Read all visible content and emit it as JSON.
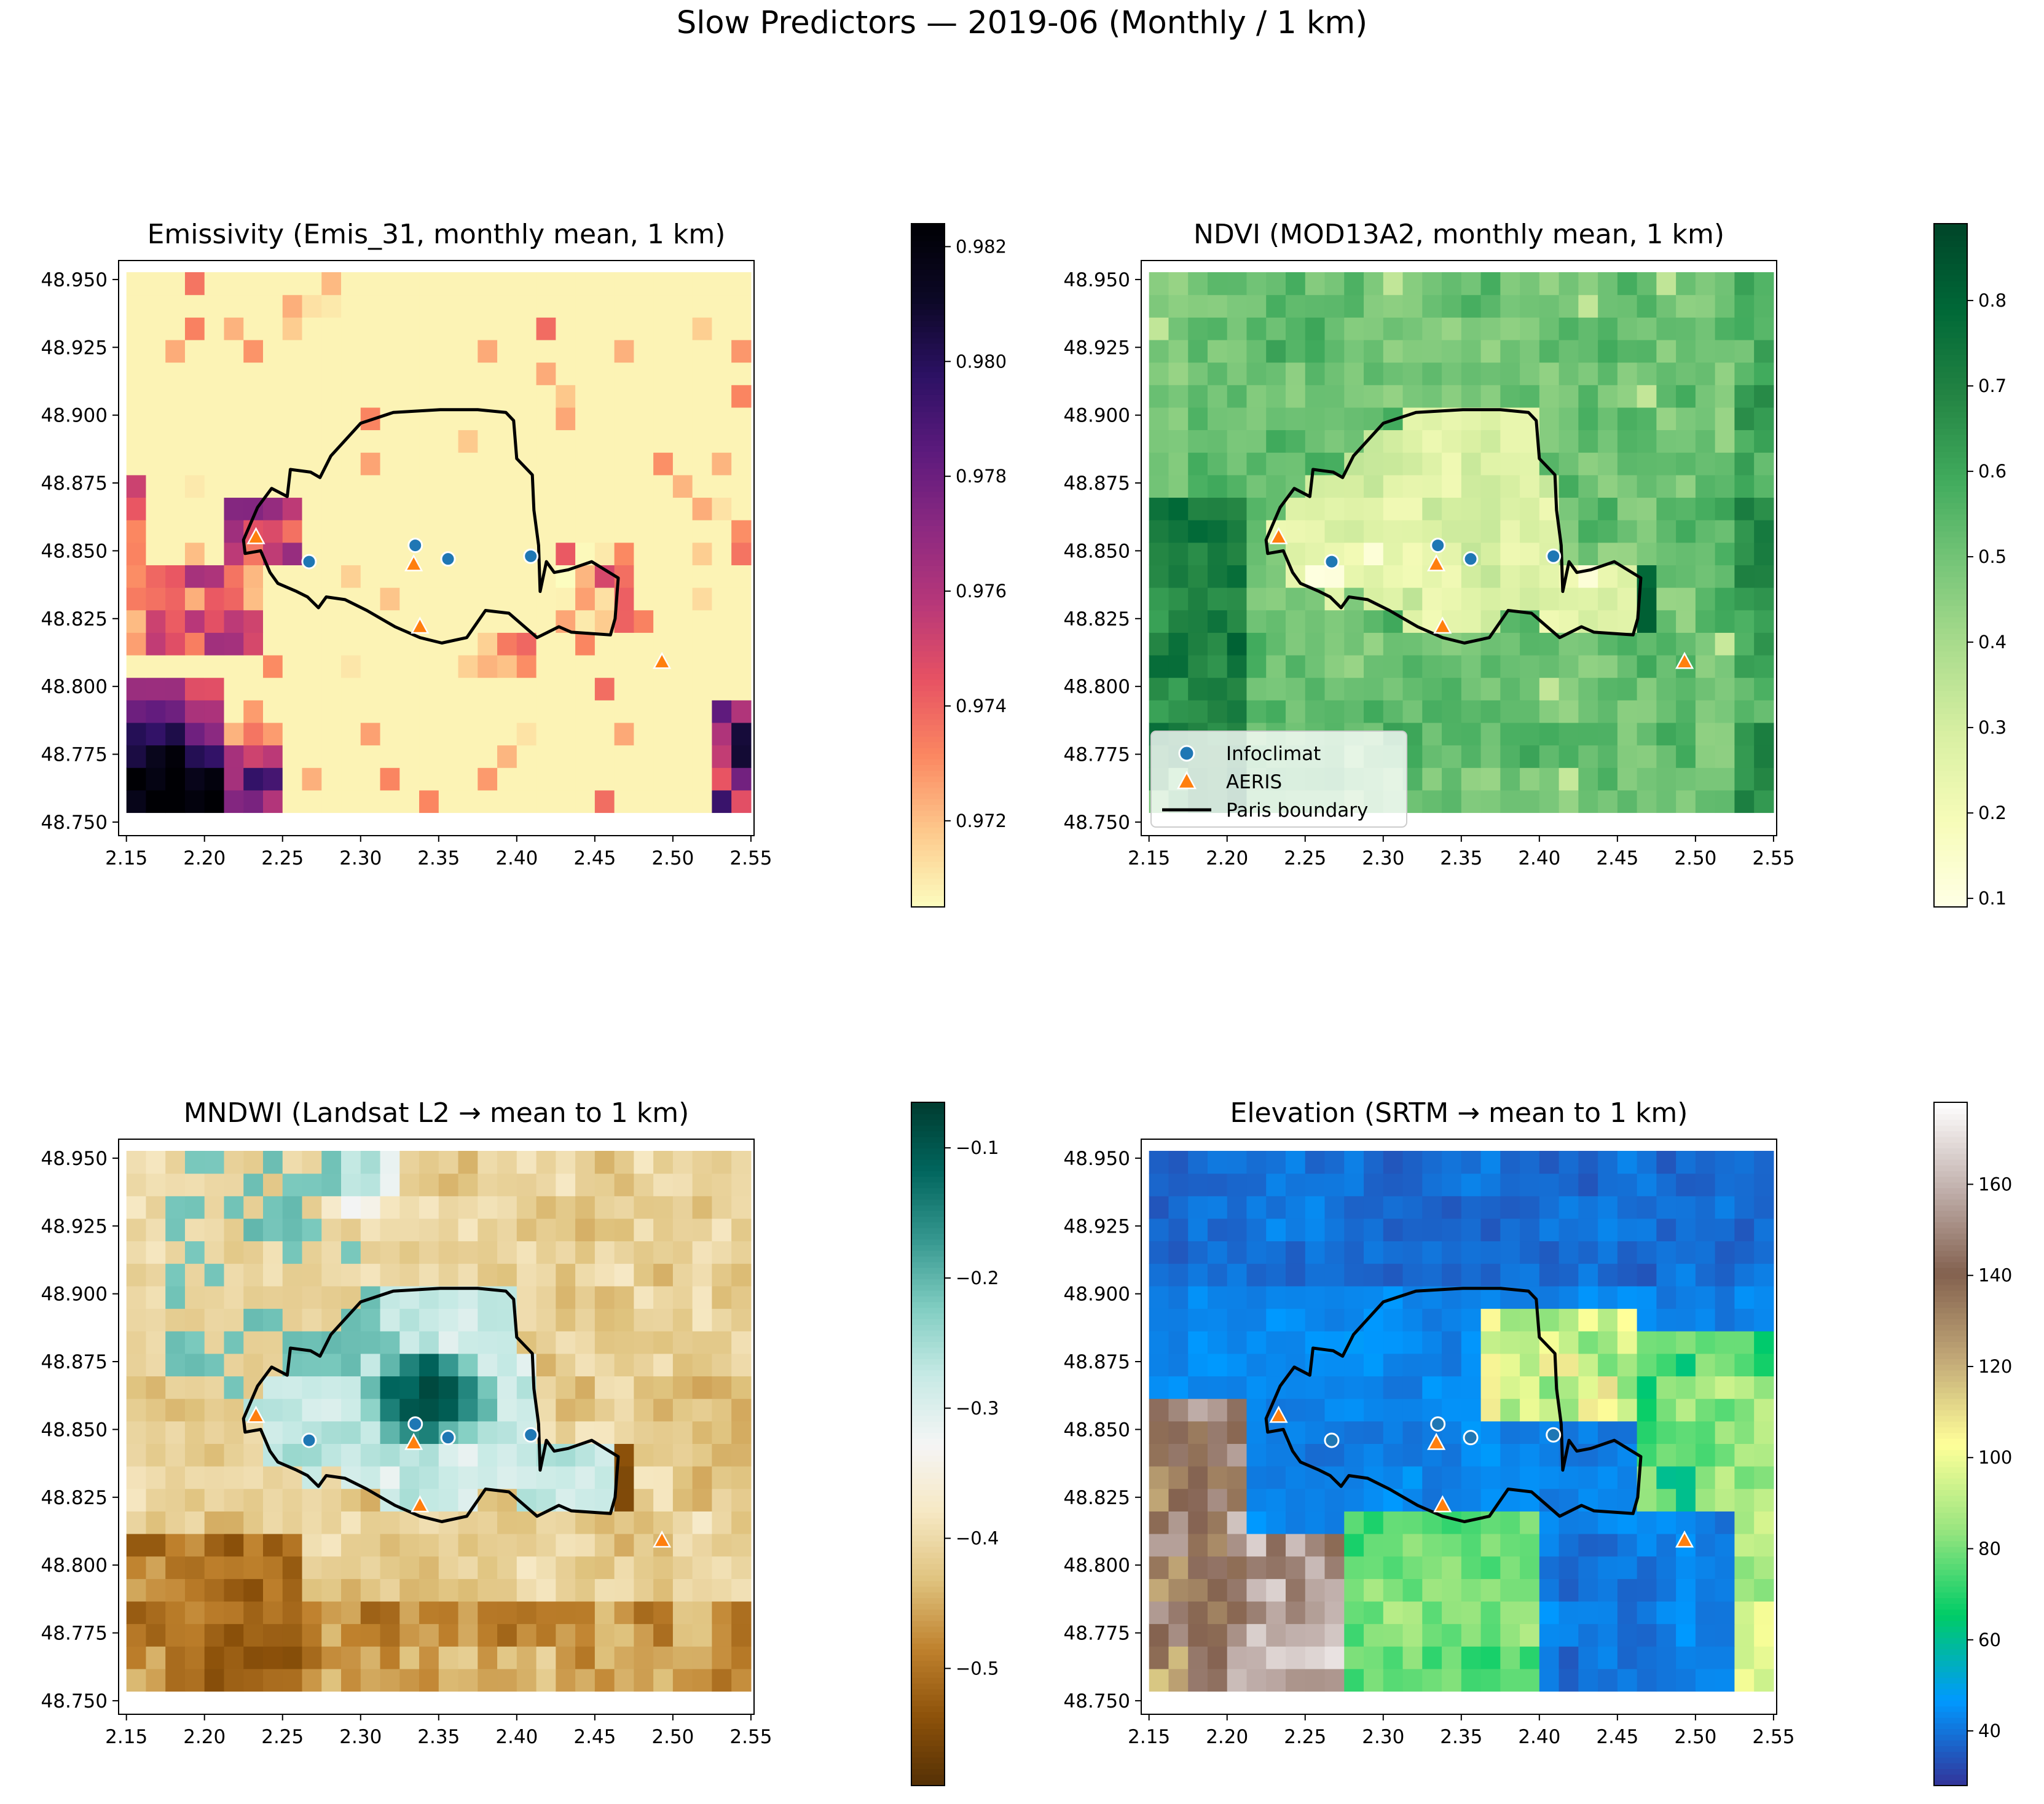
{
  "suptitle": "Slow Predictors — 2019-06 (Monthly / 1 km)",
  "chart_data": [
    {
      "type": "heatmap",
      "title": "Emissivity (Emis_31, monthly mean, 1 km)",
      "colormap": "magma_r",
      "clim": [
        0.9705,
        0.9824
      ],
      "colorbar_ticks": [
        0.972,
        0.974,
        0.976,
        0.978,
        0.98,
        0.982
      ],
      "colorbar_tick_labels": [
        "0.972",
        "0.974",
        "0.976",
        "0.978",
        "0.980",
        "0.982"
      ],
      "xlim": [
        2.145,
        2.552
      ],
      "ylim": [
        48.745,
        48.957
      ],
      "xticks": [
        2.15,
        2.2,
        2.25,
        2.3,
        2.35,
        2.4,
        2.45,
        2.5,
        2.55
      ],
      "xtick_labels": [
        "2.15",
        "2.20",
        "2.25",
        "2.30",
        "2.35",
        "2.40",
        "2.45",
        "2.50",
        "2.55"
      ],
      "yticks": [
        48.75,
        48.775,
        48.8,
        48.825,
        48.85,
        48.875,
        48.9,
        48.925,
        48.95
      ],
      "ytick_labels": [
        "48.750",
        "48.775",
        "48.800",
        "48.825",
        "48.850",
        "48.875",
        "48.900",
        "48.925",
        "48.950"
      ],
      "grid": false,
      "legend": null
    },
    {
      "type": "heatmap",
      "title": "NDVI (MOD13A2, monthly mean, 1 km)",
      "colormap": "YlGn",
      "clim": [
        0.09,
        0.89
      ],
      "colorbar_ticks": [
        0.1,
        0.2,
        0.3,
        0.4,
        0.5,
        0.6,
        0.7,
        0.8
      ],
      "colorbar_tick_labels": [
        "0.1",
        "0.2",
        "0.3",
        "0.4",
        "0.5",
        "0.6",
        "0.7",
        "0.8"
      ],
      "xlim": [
        2.145,
        2.552
      ],
      "ylim": [
        48.745,
        48.957
      ],
      "xticks": [
        2.15,
        2.2,
        2.25,
        2.3,
        2.35,
        2.4,
        2.45,
        2.5,
        2.55
      ],
      "xtick_labels": [
        "2.15",
        "2.20",
        "2.25",
        "2.30",
        "2.35",
        "2.40",
        "2.45",
        "2.50",
        "2.55"
      ],
      "yticks": [
        48.75,
        48.775,
        48.8,
        48.825,
        48.85,
        48.875,
        48.9,
        48.925,
        48.95
      ],
      "ytick_labels": [
        "48.750",
        "48.775",
        "48.800",
        "48.825",
        "48.850",
        "48.875",
        "48.900",
        "48.925",
        "48.950"
      ],
      "grid": false,
      "legend": {
        "placement": "lower left",
        "entries": [
          "Infoclimat",
          "AERIS",
          "Paris boundary"
        ]
      }
    },
    {
      "type": "heatmap",
      "title": "MNDWI (Landsat L2 → mean to 1 km)",
      "colormap": "BrBG",
      "clim": [
        -0.59,
        -0.065
      ],
      "colorbar_ticks": [
        -0.1,
        -0.2,
        -0.3,
        -0.4,
        -0.5
      ],
      "colorbar_tick_labels": [
        "−0.1",
        "−0.2",
        "−0.3",
        "−0.4",
        "−0.5"
      ],
      "xlim": [
        2.145,
        2.552
      ],
      "ylim": [
        48.745,
        48.957
      ],
      "xticks": [
        2.15,
        2.2,
        2.25,
        2.3,
        2.35,
        2.4,
        2.45,
        2.5,
        2.55
      ],
      "xtick_labels": [
        "2.15",
        "2.20",
        "2.25",
        "2.30",
        "2.35",
        "2.40",
        "2.45",
        "2.50",
        "2.55"
      ],
      "yticks": [
        48.75,
        48.775,
        48.8,
        48.825,
        48.85,
        48.875,
        48.9,
        48.925,
        48.95
      ],
      "ytick_labels": [
        "48.750",
        "48.775",
        "48.800",
        "48.825",
        "48.850",
        "48.875",
        "48.900",
        "48.925",
        "48.950"
      ],
      "grid": false,
      "legend": null
    },
    {
      "type": "heatmap",
      "title": "Elevation (SRTM → mean to 1 km)",
      "colormap": "terrain",
      "clim": [
        28,
        178
      ],
      "colorbar_ticks": [
        40,
        60,
        80,
        100,
        120,
        140,
        160
      ],
      "colorbar_tick_labels": [
        "40",
        "60",
        "80",
        "100",
        "120",
        "140",
        "160"
      ],
      "xlim": [
        2.145,
        2.552
      ],
      "ylim": [
        48.745,
        48.957
      ],
      "xticks": [
        2.15,
        2.2,
        2.25,
        2.3,
        2.35,
        2.4,
        2.45,
        2.5,
        2.55
      ],
      "xtick_labels": [
        "2.15",
        "2.20",
        "2.25",
        "2.30",
        "2.35",
        "2.40",
        "2.45",
        "2.50",
        "2.55"
      ],
      "yticks": [
        48.75,
        48.775,
        48.8,
        48.825,
        48.85,
        48.875,
        48.9,
        48.925,
        48.95
      ],
      "ytick_labels": [
        "48.750",
        "48.775",
        "48.800",
        "48.825",
        "48.850",
        "48.875",
        "48.900",
        "48.925",
        "48.950"
      ],
      "grid": false,
      "legend": null
    }
  ],
  "stations": {
    "infoclimat": {
      "label": "Infoclimat",
      "color": "#1f77b4",
      "points": [
        [
          2.267,
          48.846
        ],
        [
          2.335,
          48.852
        ],
        [
          2.356,
          48.847
        ],
        [
          2.409,
          48.848
        ]
      ]
    },
    "aeris": {
      "label": "AERIS",
      "color": "#ff7f0e",
      "points": [
        [
          2.233,
          48.855
        ],
        [
          2.334,
          48.845
        ],
        [
          2.338,
          48.822
        ],
        [
          2.493,
          48.809
        ]
      ]
    }
  },
  "boundary": {
    "label": "Paris boundary",
    "color": "#000000",
    "points": [
      [
        2.225,
        48.854
      ],
      [
        2.234,
        48.866
      ],
      [
        2.243,
        48.873
      ],
      [
        2.253,
        48.87
      ],
      [
        2.255,
        48.88
      ],
      [
        2.268,
        48.879
      ],
      [
        2.274,
        48.877
      ],
      [
        2.281,
        48.885
      ],
      [
        2.3,
        48.897
      ],
      [
        2.321,
        48.901
      ],
      [
        2.351,
        48.902
      ],
      [
        2.375,
        48.902
      ],
      [
        2.393,
        48.901
      ],
      [
        2.398,
        48.898
      ],
      [
        2.4,
        48.884
      ],
      [
        2.41,
        48.878
      ],
      [
        2.411,
        48.865
      ],
      [
        2.414,
        48.852
      ],
      [
        2.415,
        48.835
      ],
      [
        2.419,
        48.846
      ],
      [
        2.424,
        48.842
      ],
      [
        2.433,
        48.843
      ],
      [
        2.448,
        48.846
      ],
      [
        2.465,
        48.84
      ],
      [
        2.463,
        48.825
      ],
      [
        2.46,
        48.819
      ],
      [
        2.435,
        48.82
      ],
      [
        2.427,
        48.822
      ],
      [
        2.413,
        48.818
      ],
      [
        2.395,
        48.827
      ],
      [
        2.38,
        48.828
      ],
      [
        2.368,
        48.818
      ],
      [
        2.352,
        48.816
      ],
      [
        2.338,
        48.818
      ],
      [
        2.322,
        48.822
      ],
      [
        2.304,
        48.828
      ],
      [
        2.29,
        48.832
      ],
      [
        2.278,
        48.833
      ],
      [
        2.273,
        48.829
      ],
      [
        2.266,
        48.833
      ],
      [
        2.259,
        48.835
      ],
      [
        2.247,
        48.838
      ],
      [
        2.242,
        48.842
      ],
      [
        2.236,
        48.85
      ],
      [
        2.226,
        48.849
      ],
      [
        2.225,
        48.854
      ]
    ]
  }
}
